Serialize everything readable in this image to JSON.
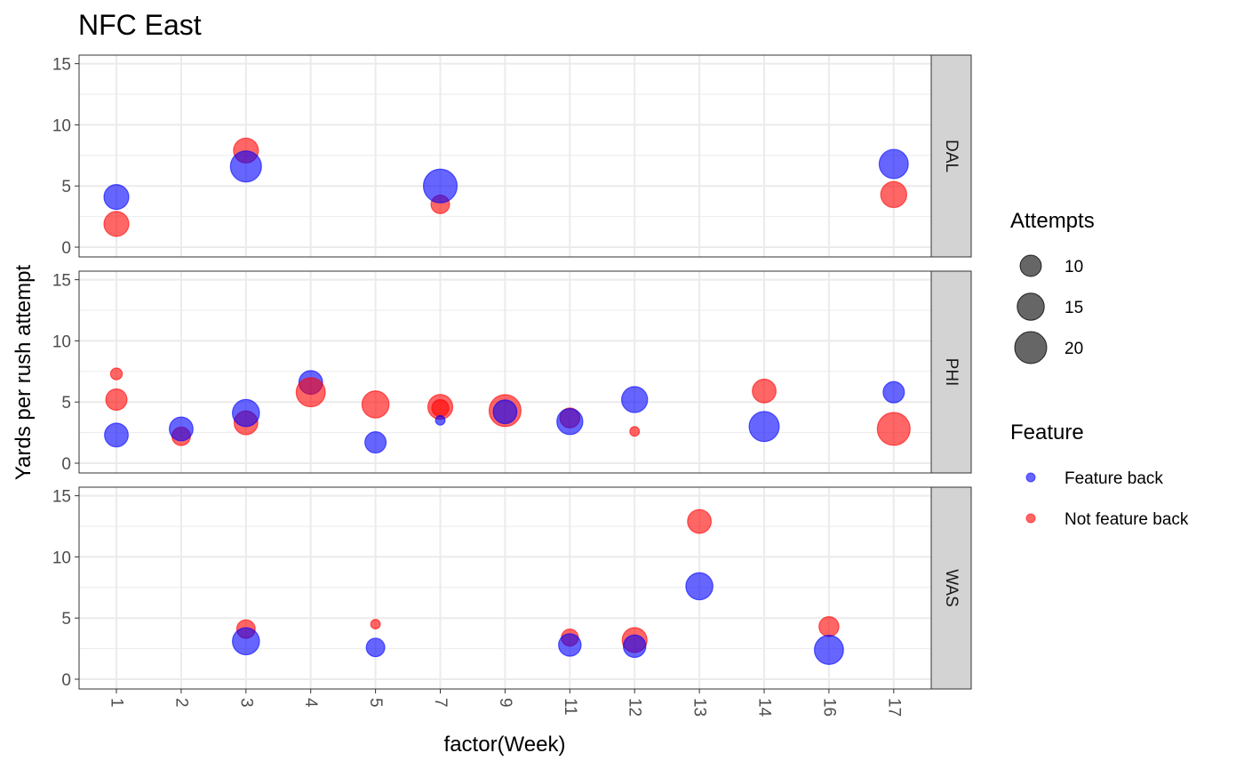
{
  "chart_data": {
    "type": "scatter",
    "title": "NFC East",
    "xlabel": "factor(Week)",
    "ylabel": "Yards per rush attempt",
    "categories": [
      "1",
      "2",
      "3",
      "4",
      "5",
      "7",
      "9",
      "11",
      "12",
      "13",
      "14",
      "16",
      "17"
    ],
    "ylim": [
      -0.8,
      15.7
    ],
    "yticks": [
      "0",
      "5",
      "10",
      "15"
    ],
    "grid": true,
    "facets": [
      {
        "name": "DAL",
        "points": [
          {
            "week": "1",
            "ypa": 1.9,
            "attempts": 13,
            "feature": "Not feature back"
          },
          {
            "week": "1",
            "ypa": 4.1,
            "attempts": 13,
            "feature": "Feature back"
          },
          {
            "week": "3",
            "ypa": 7.9,
            "attempts": 13,
            "feature": "Not feature back"
          },
          {
            "week": "3",
            "ypa": 6.6,
            "attempts": 19,
            "feature": "Feature back"
          },
          {
            "week": "7",
            "ypa": 3.5,
            "attempts": 8,
            "feature": "Not feature back"
          },
          {
            "week": "7",
            "ypa": 5.0,
            "attempts": 22,
            "feature": "Feature back"
          },
          {
            "week": "17",
            "ypa": 4.3,
            "attempts": 14,
            "feature": "Not feature back"
          },
          {
            "week": "17",
            "ypa": 6.8,
            "attempts": 17,
            "feature": "Feature back"
          }
        ]
      },
      {
        "name": "PHI",
        "points": [
          {
            "week": "1",
            "ypa": 7.3,
            "attempts": 4,
            "feature": "Not feature back"
          },
          {
            "week": "1",
            "ypa": 5.2,
            "attempts": 10,
            "feature": "Not feature back"
          },
          {
            "week": "1",
            "ypa": 2.3,
            "attempts": 12,
            "feature": "Feature back"
          },
          {
            "week": "2",
            "ypa": 2.2,
            "attempts": 8,
            "feature": "Not feature back"
          },
          {
            "week": "2",
            "ypa": 2.8,
            "attempts": 12,
            "feature": "Feature back"
          },
          {
            "week": "3",
            "ypa": 3.3,
            "attempts": 12,
            "feature": "Not feature back"
          },
          {
            "week": "3",
            "ypa": 4.1,
            "attempts": 15,
            "feature": "Feature back"
          },
          {
            "week": "4",
            "ypa": 6.6,
            "attempts": 12,
            "feature": "Feature back"
          },
          {
            "week": "4",
            "ypa": 5.8,
            "attempts": 17,
            "feature": "Not feature back"
          },
          {
            "week": "5",
            "ypa": 4.8,
            "attempts": 15,
            "feature": "Not feature back"
          },
          {
            "week": "5",
            "ypa": 1.7,
            "attempts": 10,
            "feature": "Feature back"
          },
          {
            "week": "7",
            "ypa": 4.6,
            "attempts": 13,
            "feature": "Not feature back"
          },
          {
            "week": "7",
            "ypa": 4.5,
            "attempts": 7,
            "feature": "Not feature back"
          },
          {
            "week": "7",
            "ypa": 3.5,
            "attempts": 3,
            "feature": "Feature back"
          },
          {
            "week": "9",
            "ypa": 4.3,
            "attempts": 20,
            "feature": "Not feature back"
          },
          {
            "week": "9",
            "ypa": 4.2,
            "attempts": 12,
            "feature": "Feature back"
          },
          {
            "week": "11",
            "ypa": 3.7,
            "attempts": 9,
            "feature": "Not feature back"
          },
          {
            "week": "11",
            "ypa": 3.4,
            "attempts": 14,
            "feature": "Feature back"
          },
          {
            "week": "12",
            "ypa": 5.2,
            "attempts": 14,
            "feature": "Feature back"
          },
          {
            "week": "12",
            "ypa": 2.6,
            "attempts": 3,
            "feature": "Not feature back"
          },
          {
            "week": "14",
            "ypa": 5.9,
            "attempts": 12,
            "feature": "Not feature back"
          },
          {
            "week": "14",
            "ypa": 3.0,
            "attempts": 18,
            "feature": "Feature back"
          },
          {
            "week": "17",
            "ypa": 5.8,
            "attempts": 10,
            "feature": "Feature back"
          },
          {
            "week": "17",
            "ypa": 2.8,
            "attempts": 21,
            "feature": "Not feature back"
          }
        ]
      },
      {
        "name": "WAS",
        "points": [
          {
            "week": "3",
            "ypa": 4.1,
            "attempts": 8,
            "feature": "Not feature back"
          },
          {
            "week": "3",
            "ypa": 3.1,
            "attempts": 15,
            "feature": "Feature back"
          },
          {
            "week": "5",
            "ypa": 4.5,
            "attempts": 3,
            "feature": "Not feature back"
          },
          {
            "week": "5",
            "ypa": 2.6,
            "attempts": 8,
            "feature": "Feature back"
          },
          {
            "week": "11",
            "ypa": 3.4,
            "attempts": 7,
            "feature": "Not feature back"
          },
          {
            "week": "11",
            "ypa": 2.8,
            "attempts": 11,
            "feature": "Feature back"
          },
          {
            "week": "12",
            "ypa": 3.2,
            "attempts": 13,
            "feature": "Not feature back"
          },
          {
            "week": "12",
            "ypa": 2.7,
            "attempts": 11,
            "feature": "Feature back"
          },
          {
            "week": "13",
            "ypa": 12.9,
            "attempts": 12,
            "feature": "Not feature back"
          },
          {
            "week": "13",
            "ypa": 7.6,
            "attempts": 15,
            "feature": "Feature back"
          },
          {
            "week": "16",
            "ypa": 4.3,
            "attempts": 9,
            "feature": "Not feature back"
          },
          {
            "week": "16",
            "ypa": 2.4,
            "attempts": 17,
            "feature": "Feature back"
          }
        ]
      }
    ],
    "legend": {
      "placement": "right",
      "size_title": "Attempts",
      "size_items": [
        {
          "label": "10",
          "value": 10
        },
        {
          "label": "15",
          "value": 15
        },
        {
          "label": "20",
          "value": 20
        }
      ],
      "color_title": "Feature",
      "color_items": [
        {
          "label": "Feature back",
          "color": "#0000ff"
        },
        {
          "label": "Not feature back",
          "color": "#ff0000"
        }
      ]
    },
    "colors": {
      "Feature back": "#0000ff",
      "Not feature back": "#ff0000",
      "size_legend": "#000000",
      "strip_fill": "#d3d3d3",
      "grid": "#ebebeb"
    },
    "point_alpha": 0.6
  }
}
